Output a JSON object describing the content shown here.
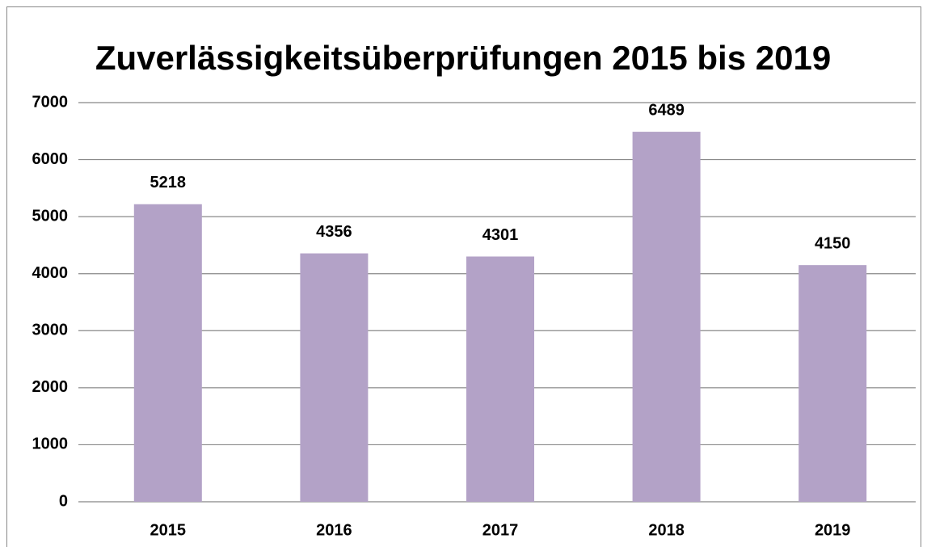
{
  "chart_data": {
    "type": "bar",
    "title": "Zuverlässigkeitsüberprüfungen 2015 bis 2019",
    "categories": [
      "2015",
      "2016",
      "2017",
      "2018",
      "2019"
    ],
    "values": [
      5218,
      4356,
      4301,
      6489,
      4150
    ],
    "color": "#b3a2c7",
    "ylim": [
      0,
      7000
    ],
    "yticks": [
      0,
      1000,
      2000,
      3000,
      4000,
      5000,
      6000,
      7000
    ],
    "grid": true
  }
}
